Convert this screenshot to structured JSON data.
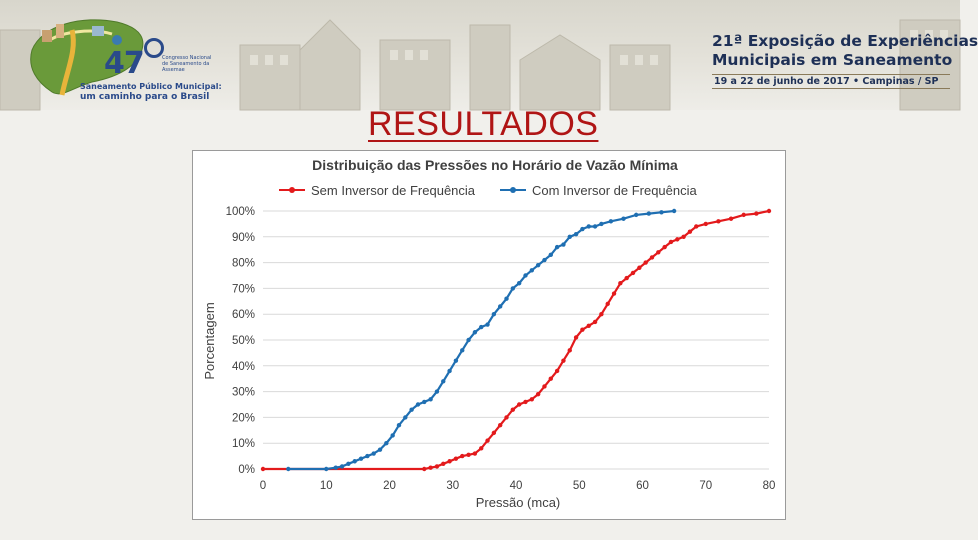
{
  "header": {
    "logo": {
      "number": "47",
      "tagline_small": "Congresso Nacional de Saneamento da Assemae",
      "line1": "Saneamento Público Municipal:",
      "line2": "um caminho para o Brasil"
    },
    "expo": {
      "line1": "21ª Exposição de Experiências",
      "line2": "Municipais em Saneamento",
      "line3": "19 a 22 de junho de 2017 • Campinas / SP"
    }
  },
  "slide": {
    "title": "RESULTADOS"
  },
  "colors": {
    "red": "#e31a1c",
    "blue": "#1f6fb2",
    "title": "#b01515"
  },
  "chart_data": {
    "type": "line",
    "title": "Distribuição das Pressões no Horário de Vazão Mínima",
    "xlabel": "Pressão (mca)",
    "ylabel": "Porcentagem",
    "xlim": [
      0,
      80
    ],
    "ylim": [
      0,
      1
    ],
    "xticks": [
      0,
      10,
      20,
      30,
      40,
      50,
      60,
      70,
      80
    ],
    "yticks": [
      0,
      0.1,
      0.2,
      0.3,
      0.4,
      0.5,
      0.6,
      0.7,
      0.8,
      0.9,
      1.0
    ],
    "xtick_labels": [
      "0",
      "10",
      "20",
      "30",
      "40",
      "50",
      "60",
      "70",
      "80"
    ],
    "ytick_labels": [
      "0%",
      "10%",
      "20%",
      "30%",
      "40%",
      "50%",
      "60%",
      "70%",
      "80%",
      "90%",
      "100%"
    ],
    "grid": "horizontal",
    "legend_position": "top",
    "series": [
      {
        "name": "Sem Inversor de Frequência",
        "color": "#e31a1c",
        "x": [
          0,
          25.5,
          26.5,
          27.5,
          28.5,
          29.5,
          30.5,
          31.5,
          32.5,
          33.5,
          34.5,
          35.5,
          36.5,
          37.5,
          38.5,
          39.5,
          40.5,
          41.5,
          42.5,
          43.5,
          44.5,
          45.5,
          46.5,
          47.5,
          48.5,
          49.5,
          50.5,
          51.5,
          52.5,
          53.5,
          54.5,
          55.5,
          56.5,
          57.5,
          58.5,
          59.5,
          60.5,
          61.5,
          62.5,
          63.5,
          64.5,
          65.5,
          66.5,
          67.5,
          68.5,
          70,
          72,
          74,
          76,
          78,
          80
        ],
        "y": [
          0,
          0,
          0.005,
          0.01,
          0.02,
          0.03,
          0.04,
          0.05,
          0.055,
          0.06,
          0.08,
          0.11,
          0.14,
          0.17,
          0.2,
          0.23,
          0.25,
          0.26,
          0.27,
          0.29,
          0.32,
          0.35,
          0.38,
          0.42,
          0.46,
          0.51,
          0.54,
          0.555,
          0.57,
          0.6,
          0.64,
          0.68,
          0.72,
          0.74,
          0.76,
          0.78,
          0.8,
          0.82,
          0.84,
          0.86,
          0.88,
          0.89,
          0.9,
          0.92,
          0.94,
          0.95,
          0.96,
          0.97,
          0.985,
          0.99,
          1.0
        ]
      },
      {
        "name": "Com Inversor de Frequência",
        "color": "#1f6fb2",
        "x": [
          4,
          10,
          11.5,
          12.5,
          13.5,
          14.5,
          15.5,
          16.5,
          17.5,
          18.5,
          19.5,
          20.5,
          21.5,
          22.5,
          23.5,
          24.5,
          25.5,
          26.5,
          27.5,
          28.5,
          29.5,
          30.5,
          31.5,
          32.5,
          33.5,
          34.5,
          35.5,
          36.5,
          37.5,
          38.5,
          39.5,
          40.5,
          41.5,
          42.5,
          43.5,
          44.5,
          45.5,
          46.5,
          47.5,
          48.5,
          49.5,
          50.5,
          51.5,
          52.5,
          53.5,
          55,
          57,
          59,
          61,
          63,
          65
        ],
        "y": [
          0,
          0,
          0.005,
          0.01,
          0.02,
          0.03,
          0.04,
          0.05,
          0.06,
          0.075,
          0.1,
          0.13,
          0.17,
          0.2,
          0.23,
          0.25,
          0.26,
          0.27,
          0.3,
          0.34,
          0.38,
          0.42,
          0.46,
          0.5,
          0.53,
          0.55,
          0.56,
          0.6,
          0.63,
          0.66,
          0.7,
          0.72,
          0.75,
          0.77,
          0.79,
          0.81,
          0.83,
          0.86,
          0.87,
          0.9,
          0.91,
          0.93,
          0.94,
          0.94,
          0.95,
          0.96,
          0.97,
          0.985,
          0.99,
          0.995,
          1.0
        ]
      }
    ]
  }
}
